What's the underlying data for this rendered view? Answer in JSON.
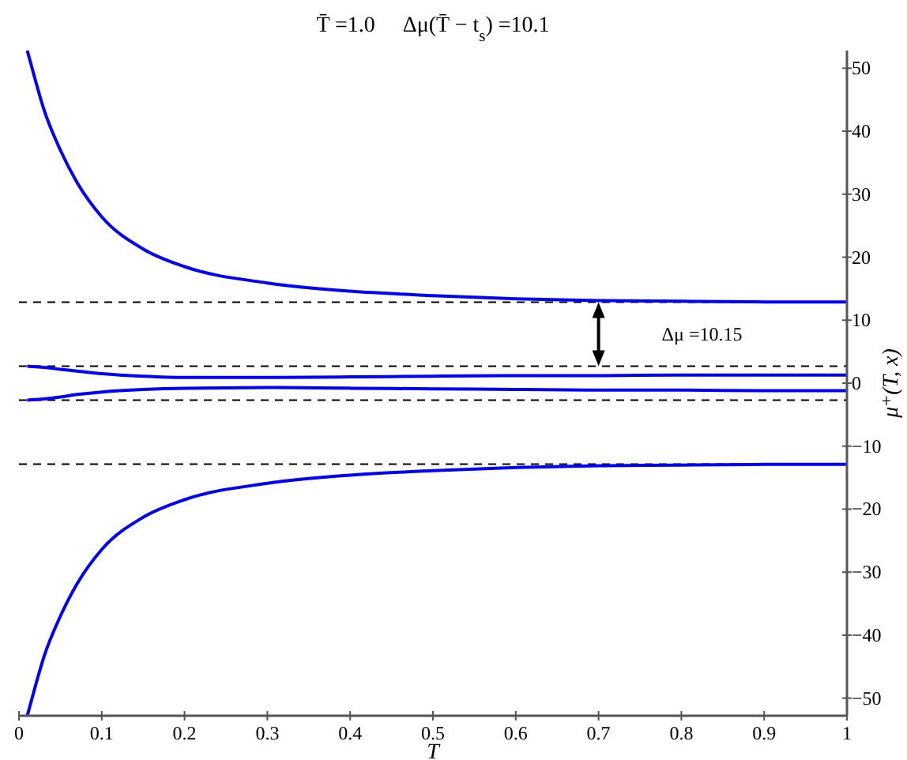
{
  "chart_data": {
    "type": "line",
    "title": "T̄ =1.0     Δμ(T̄ − t$_{s}$) =10.1",
    "xlabel": "T",
    "ylabel": "μ⁺(T, x)",
    "x": [
      0.01,
      0.02,
      0.03,
      0.05,
      0.07,
      0.1,
      0.15,
      0.2,
      0.3,
      0.4,
      0.5,
      0.6,
      0.7,
      0.8,
      0.9,
      1.0
    ],
    "series": [
      {
        "color": "#0000ff",
        "values": [
          52.8,
          48,
          43.5,
          37,
          31.9,
          26.4,
          21.3,
          18.5,
          15.9,
          14.6,
          13.9,
          13.4,
          13.1,
          13,
          12.9,
          12.9
        ]
      },
      {
        "color": "#0000ff",
        "values": [
          2.7,
          2.6,
          2.5,
          2.2,
          1.9,
          1.5,
          1.1,
          0.9,
          0.9,
          1.0,
          1.1,
          1.2,
          1.2,
          1.3,
          1.3,
          1.3
        ]
      },
      {
        "color": "#0000ff",
        "values": [
          -2.7,
          -2.6,
          -2.5,
          -2.2,
          -1.8,
          -1.4,
          -1.0,
          -0.8,
          -0.7,
          -0.8,
          -0.9,
          -1.0,
          -1.1,
          -1.1,
          -1.2,
          -1.2
        ]
      },
      {
        "color": "#0000ff",
        "values": [
          -52.8,
          -48,
          -43.5,
          -37,
          -31.9,
          -26.4,
          -21.3,
          -18.5,
          -15.9,
          -14.6,
          -13.9,
          -13.4,
          -13.1,
          -13,
          -12.9,
          -12.9
        ]
      }
    ],
    "xlim": [
      0,
      1
    ],
    "ylim": [
      -52.8,
      52.8
    ],
    "xticks": [
      0,
      0.1,
      0.2,
      0.3,
      0.4,
      0.5,
      0.6,
      0.7,
      0.8,
      0.9,
      1
    ],
    "yticks": [
      -50,
      -40,
      -30,
      -20,
      -10,
      0,
      10,
      20,
      30,
      40,
      50
    ],
    "ref_lines": [
      {
        "axis": "y",
        "value": 12.85,
        "color": "#000000",
        "line_style": "dashed"
      },
      {
        "axis": "y",
        "value": 2.7,
        "color": "#000000",
        "line_style": "dashed"
      },
      {
        "axis": "y",
        "value": -2.7,
        "color": "#000000",
        "line_style": "dashed"
      },
      {
        "axis": "y",
        "value": -12.85,
        "color": "#000000",
        "line_style": "dashed"
      }
    ],
    "annotations": [
      "Δμ =10.15"
    ],
    "grid": false,
    "line_style": "solid",
    "marker": "none"
  }
}
